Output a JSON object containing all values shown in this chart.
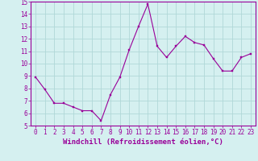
{
  "x": [
    0,
    1,
    2,
    3,
    4,
    5,
    6,
    7,
    8,
    9,
    10,
    11,
    12,
    13,
    14,
    15,
    16,
    17,
    18,
    19,
    20,
    21,
    22,
    23
  ],
  "y": [
    8.9,
    7.9,
    6.8,
    6.8,
    6.5,
    6.2,
    6.2,
    5.4,
    7.5,
    8.9,
    11.1,
    13.0,
    14.8,
    11.4,
    10.5,
    11.4,
    12.2,
    11.7,
    11.5,
    10.4,
    9.4,
    9.4,
    10.5,
    10.8
  ],
  "line_color": "#990099",
  "marker_color": "#990099",
  "bg_color": "#d5f0f0",
  "grid_color": "#b0d8d8",
  "xlabel": "Windchill (Refroidissement éolien,°C)",
  "xlabel_color": "#990099",
  "tick_color": "#990099",
  "spine_color": "#990099",
  "ylim": [
    5,
    15
  ],
  "yticks": [
    5,
    6,
    7,
    8,
    9,
    10,
    11,
    12,
    13,
    14,
    15
  ],
  "xticks": [
    0,
    1,
    2,
    3,
    4,
    5,
    6,
    7,
    8,
    9,
    10,
    11,
    12,
    13,
    14,
    15,
    16,
    17,
    18,
    19,
    20,
    21,
    22,
    23
  ],
  "axis_fontsize": 6.0,
  "tick_fontsize": 5.5,
  "xlabel_fontsize": 6.5,
  "line_width": 0.8,
  "marker_size": 2.0
}
